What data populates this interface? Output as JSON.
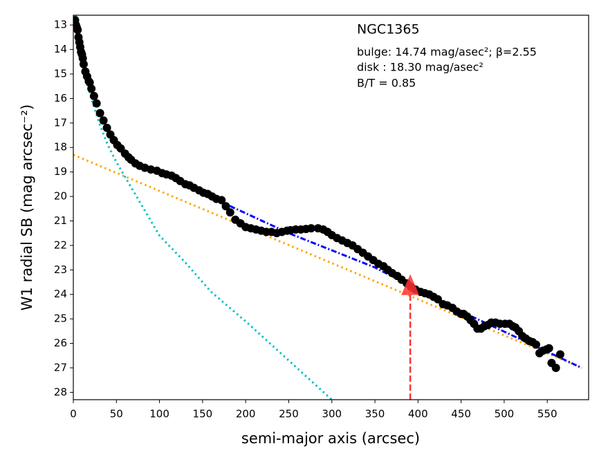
{
  "chart_data": {
    "type": "scatter",
    "xlabel": "semi-major axis (arcsec)",
    "ylabel": "W1 radial SB (mag arcsec⁻²)",
    "annotations": [
      "NGC1365",
      "bulge: 14.74 mag/asec²; β=2.55",
      "disk  : 18.30 mag/asec²",
      "B/T = 0.85"
    ],
    "xlim": [
      0,
      598
    ],
    "ylim": [
      28.3,
      12.6
    ],
    "xticks": [
      0,
      50,
      100,
      150,
      200,
      250,
      300,
      350,
      400,
      450,
      500,
      550
    ],
    "yticks": [
      13,
      14,
      15,
      16,
      17,
      18,
      19,
      20,
      21,
      22,
      23,
      24,
      25,
      26,
      27,
      28
    ],
    "series": [
      {
        "style": "dotted",
        "color": "#00bfbf",
        "x": [
          3,
          10,
          20,
          30,
          40,
          50,
          70,
          100,
          130,
          160,
          200,
          250,
          300
        ],
        "values": [
          12.6,
          14.3,
          15.9,
          17.0,
          17.9,
          18.6,
          19.8,
          21.6,
          22.7,
          23.9,
          25.1,
          26.7,
          28.3
        ]
      },
      {
        "style": "dotted",
        "color": "#ffa500",
        "x": [
          0,
          590
        ],
        "values": [
          18.3,
          27.0
        ]
      },
      {
        "style": "dashdot",
        "color": "#0000ff",
        "x": [
          170,
          250,
          350,
          450,
          590
        ],
        "values": [
          20.2,
          21.5,
          22.9,
          24.7,
          27.0
        ]
      },
      {
        "style": "markers",
        "color": "#000000",
        "x": [
          2,
          3,
          4,
          5,
          6,
          7,
          8,
          9,
          10,
          11,
          12,
          14,
          16,
          18,
          19,
          21,
          24,
          27,
          31,
          35,
          39,
          43,
          47,
          51,
          55,
          60,
          64,
          67,
          72,
          77,
          83,
          90,
          97,
          103,
          108,
          114,
          119,
          124,
          130,
          135,
          140,
          146,
          151,
          156,
          161,
          166,
          172,
          177,
          182,
          188,
          194,
          200,
          206,
          212,
          218,
          224,
          230,
          236,
          242,
          248,
          252,
          258,
          264,
          270,
          276,
          284,
          290,
          295,
          300,
          306,
          312,
          318,
          324,
          330,
          336,
          342,
          348,
          354,
          360,
          365,
          370,
          376,
          381,
          387,
          392,
          397,
          403,
          408,
          413,
          418,
          423,
          429,
          434,
          440,
          445,
          450,
          453,
          457,
          461,
          465,
          469,
          473,
          477,
          481,
          485,
          490,
          495,
          501,
          506,
          510,
          513,
          517,
          521,
          525,
          529,
          533,
          537,
          541,
          545,
          549,
          552,
          555,
          560,
          565
        ],
        "values": [
          12.8,
          13.0,
          13.1,
          13.2,
          13.5,
          13.7,
          13.9,
          14.1,
          14.2,
          14.36,
          14.6,
          14.9,
          15.1,
          15.3,
          15.35,
          15.6,
          15.9,
          16.2,
          16.6,
          16.9,
          17.2,
          17.47,
          17.7,
          17.9,
          18.04,
          18.25,
          18.4,
          18.5,
          18.65,
          18.75,
          18.83,
          18.9,
          18.95,
          19.05,
          19.1,
          19.15,
          19.25,
          19.37,
          19.5,
          19.55,
          19.65,
          19.75,
          19.85,
          19.9,
          20.0,
          20.1,
          20.15,
          20.4,
          20.65,
          20.95,
          21.1,
          21.25,
          21.3,
          21.35,
          21.4,
          21.45,
          21.45,
          21.5,
          21.45,
          21.4,
          21.38,
          21.35,
          21.35,
          21.33,
          21.3,
          21.3,
          21.35,
          21.45,
          21.58,
          21.7,
          21.8,
          21.9,
          22.0,
          22.15,
          22.3,
          22.45,
          22.6,
          22.75,
          22.85,
          23.0,
          23.13,
          23.25,
          23.4,
          23.55,
          23.7,
          23.8,
          23.9,
          23.95,
          24.0,
          24.1,
          24.2,
          24.4,
          24.45,
          24.55,
          24.7,
          24.8,
          24.8,
          24.9,
          25.05,
          25.2,
          25.4,
          25.4,
          25.3,
          25.25,
          25.15,
          25.15,
          25.2,
          25.2,
          25.2,
          25.3,
          25.35,
          25.5,
          25.7,
          25.8,
          25.9,
          25.95,
          26.05,
          26.4,
          26.3,
          26.25,
          26.2,
          26.8,
          27.0,
          26.45
        ]
      }
    ],
    "marker": {
      "x": 391,
      "y": 23.8,
      "color": "#ff3333"
    }
  }
}
